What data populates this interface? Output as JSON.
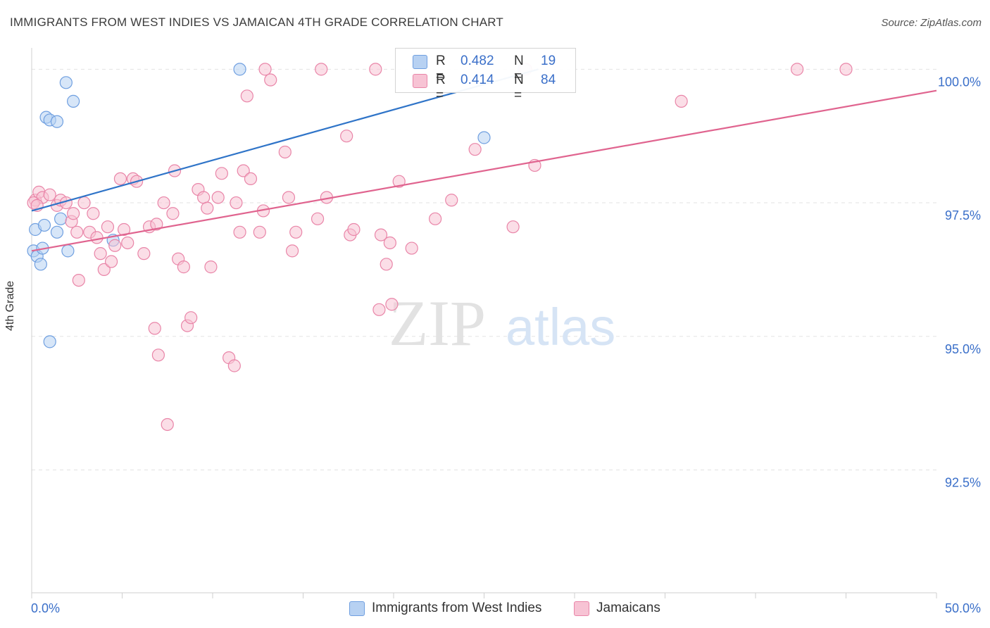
{
  "title": "IMMIGRANTS FROM WEST INDIES VS JAMAICAN 4TH GRADE CORRELATION CHART",
  "source": "Source: ZipAtlas.com",
  "watermark": {
    "zip": "ZIP",
    "atlas": "atlas"
  },
  "legend": {
    "r_label": "R =",
    "n_label": "N =",
    "rows": [
      {
        "r": "0.482",
        "n": "19",
        "fill": "#b7d1f2",
        "stroke": "#6f9fe0"
      },
      {
        "r": "0.414",
        "n": "84",
        "fill": "#f7c3d4",
        "stroke": "#e985a8"
      }
    ]
  },
  "chart_data": {
    "type": "scatter",
    "xlabel": "",
    "ylabel": "4th Grade",
    "xlim": [
      0,
      50
    ],
    "ylim": [
      90.2,
      100.4
    ],
    "x_tick_labels": [
      {
        "value": 0,
        "label": "0.0%"
      },
      {
        "value": 50,
        "label": "50.0%"
      }
    ],
    "y_tick_labels": [
      {
        "value": 100,
        "label": "100.0%"
      },
      {
        "value": 97.5,
        "label": "97.5%"
      },
      {
        "value": 95,
        "label": "95.0%"
      },
      {
        "value": 92.5,
        "label": "92.5%"
      }
    ],
    "grid": true,
    "legend_position": "top-center",
    "series": [
      {
        "name": "Immigrants from West Indies",
        "color": "#6f9fe0",
        "fill": "#b7d1f2",
        "line_color": "#2f74c8",
        "trend": {
          "x": [
            0,
            28
          ],
          "y": [
            97.35,
            100
          ]
        },
        "points": [
          [
            0.1,
            96.6
          ],
          [
            0.2,
            97.0
          ],
          [
            0.3,
            96.5
          ],
          [
            0.5,
            96.35
          ],
          [
            0.6,
            96.65
          ],
          [
            0.7,
            97.08
          ],
          [
            0.8,
            99.1
          ],
          [
            1.0,
            99.05
          ],
          [
            1.0,
            94.9
          ],
          [
            1.4,
            96.95
          ],
          [
            1.4,
            99.02
          ],
          [
            1.6,
            97.2
          ],
          [
            1.9,
            99.75
          ],
          [
            2.0,
            96.6
          ],
          [
            2.3,
            99.4
          ],
          [
            4.5,
            96.8
          ],
          [
            11.5,
            100.0
          ],
          [
            25.0,
            98.72
          ],
          [
            27.2,
            100.0
          ]
        ]
      },
      {
        "name": "Jamaicans",
        "color": "#e985a8",
        "fill": "#f7c3d4",
        "line_color": "#e0648f",
        "trend": {
          "x": [
            0,
            50
          ],
          "y": [
            96.6,
            99.6
          ]
        },
        "points": [
          [
            0.2,
            97.55
          ],
          [
            0.4,
            97.7
          ],
          [
            0.6,
            97.6
          ],
          [
            1.0,
            97.65
          ],
          [
            1.4,
            97.45
          ],
          [
            1.6,
            97.55
          ],
          [
            1.9,
            97.5
          ],
          [
            2.2,
            97.15
          ],
          [
            2.3,
            97.3
          ],
          [
            2.5,
            96.95
          ],
          [
            2.6,
            96.05
          ],
          [
            2.9,
            97.5
          ],
          [
            3.2,
            96.95
          ],
          [
            3.4,
            97.3
          ],
          [
            3.6,
            96.85
          ],
          [
            3.8,
            96.55
          ],
          [
            4.0,
            96.25
          ],
          [
            4.2,
            97.05
          ],
          [
            4.4,
            96.4
          ],
          [
            4.6,
            96.7
          ],
          [
            4.9,
            97.95
          ],
          [
            5.1,
            97.0
          ],
          [
            5.3,
            96.75
          ],
          [
            5.6,
            97.95
          ],
          [
            5.8,
            97.9
          ],
          [
            6.2,
            96.55
          ],
          [
            6.5,
            97.05
          ],
          [
            6.8,
            95.15
          ],
          [
            6.9,
            97.1
          ],
          [
            7.0,
            94.65
          ],
          [
            7.3,
            97.5
          ],
          [
            7.5,
            93.35
          ],
          [
            7.8,
            97.3
          ],
          [
            7.9,
            98.1
          ],
          [
            8.1,
            96.45
          ],
          [
            8.4,
            96.3
          ],
          [
            8.6,
            95.2
          ],
          [
            8.8,
            95.35
          ],
          [
            9.2,
            97.75
          ],
          [
            9.5,
            97.6
          ],
          [
            9.7,
            97.4
          ],
          [
            9.9,
            96.3
          ],
          [
            10.3,
            97.6
          ],
          [
            10.5,
            98.05
          ],
          [
            10.9,
            94.6
          ],
          [
            11.2,
            94.45
          ],
          [
            11.3,
            97.5
          ],
          [
            11.5,
            96.95
          ],
          [
            11.7,
            98.1
          ],
          [
            11.9,
            99.5
          ],
          [
            12.1,
            97.95
          ],
          [
            12.6,
            96.95
          ],
          [
            12.8,
            97.35
          ],
          [
            12.9,
            100.0
          ],
          [
            13.2,
            99.8
          ],
          [
            14.0,
            98.45
          ],
          [
            14.2,
            97.6
          ],
          [
            14.4,
            96.6
          ],
          [
            14.6,
            96.95
          ],
          [
            15.8,
            97.2
          ],
          [
            16.0,
            100.0
          ],
          [
            16.3,
            97.6
          ],
          [
            17.4,
            98.75
          ],
          [
            17.6,
            96.9
          ],
          [
            17.8,
            97.0
          ],
          [
            19.0,
            100.0
          ],
          [
            19.2,
            95.5
          ],
          [
            19.3,
            96.9
          ],
          [
            19.6,
            96.35
          ],
          [
            19.8,
            96.75
          ],
          [
            19.9,
            95.6
          ],
          [
            20.3,
            97.9
          ],
          [
            21.0,
            96.65
          ],
          [
            22.3,
            97.2
          ],
          [
            23.2,
            97.55
          ],
          [
            24.5,
            98.5
          ],
          [
            26.6,
            97.05
          ],
          [
            27.3,
            100.0
          ],
          [
            27.8,
            98.2
          ],
          [
            35.9,
            99.4
          ],
          [
            42.3,
            100.0
          ],
          [
            45.0,
            100.0
          ],
          [
            0.1,
            97.5
          ],
          [
            0.3,
            97.45
          ]
        ]
      }
    ]
  }
}
